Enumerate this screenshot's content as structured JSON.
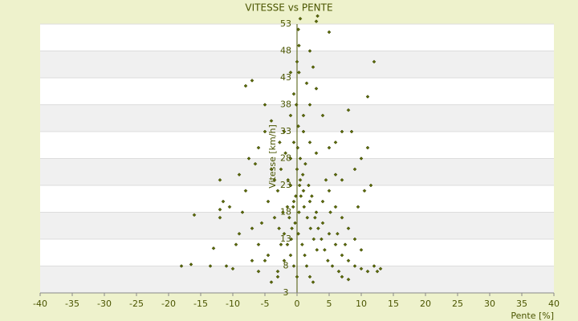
{
  "chart_data": {
    "type": "scatter",
    "title": "VITESSE vs PENTE",
    "xlabel": "Pente [%]",
    "ylabel": "Vitesse [km/h]",
    "color": "#5b6b00",
    "grid": true,
    "xlim": [
      -40,
      40
    ],
    "xticks": [
      -40,
      -35,
      -30,
      -25,
      -20,
      -15,
      -10,
      -5,
      0,
      5,
      10,
      15,
      20,
      25,
      30,
      35,
      40
    ],
    "ylim": [
      3,
      53
    ],
    "yticks": [
      3,
      8,
      13,
      18,
      23,
      28,
      33,
      38,
      43,
      48,
      53
    ],
    "series": [
      {
        "name": "VITESSE vs PENTE",
        "color": "#5b6b00",
        "x": [
          -18,
          -16.5,
          -13.5,
          -11,
          -10,
          -13,
          -12,
          -16,
          -12,
          -11.5,
          -12,
          -9,
          -8,
          -8.5,
          -7,
          -6,
          -5,
          -9,
          -7.5,
          -6,
          -5,
          -6.5,
          -4,
          -5,
          -8,
          -7,
          -4,
          -3,
          -3.5,
          -2.5,
          -2,
          -3,
          -2,
          -1.5,
          -1,
          -1,
          -0.5,
          -2,
          -1,
          -0.5,
          -1,
          0,
          0.3,
          0.2,
          0.5,
          3,
          3.2,
          5,
          12,
          2,
          2.5,
          1.5,
          3,
          2,
          1,
          4,
          1,
          2,
          3,
          5,
          6,
          7,
          8,
          8.5,
          10,
          11,
          11,
          9,
          7,
          6,
          5,
          4,
          6,
          7,
          8,
          9,
          10,
          12,
          13,
          12.5,
          11,
          10,
          9,
          8,
          7,
          6,
          5,
          4,
          3,
          2,
          1,
          0.5,
          0,
          0.5,
          -0.5,
          0.3,
          -0.3,
          0.2,
          0.8,
          1.2,
          1.5,
          2,
          2.5,
          0,
          -0.5,
          -1,
          -1.5,
          -0.8,
          -1.2,
          -0.6,
          -0.2,
          0.4,
          0.9,
          1.3,
          1.8,
          2.3,
          2.8,
          3.3,
          3.8,
          4.3,
          4.8,
          5.5,
          6.5,
          7,
          8,
          -4,
          -3,
          -4.5,
          -5.5,
          -4.5,
          -3.5,
          -2.5,
          -1.8,
          -2.7,
          1.6,
          2.1,
          2.6,
          3.1,
          1.1,
          0.6,
          -0.9,
          -1.4,
          -2.2,
          -2.8,
          4.5,
          5.2,
          6.3,
          7.5,
          9.5,
          10.5,
          11.5,
          -9.5,
          -10.5,
          -7,
          -6,
          0.1,
          0.2,
          -0.1,
          0.3
        ],
        "values": [
          8,
          8.3,
          8,
          8,
          7.5,
          11.3,
          17,
          17.5,
          18.5,
          20,
          24,
          25,
          22,
          18,
          15,
          12,
          9,
          14,
          28,
          30,
          33,
          27,
          35,
          38,
          41.5,
          42.5,
          26,
          22,
          17,
          12,
          9,
          7,
          14,
          19,
          23,
          28,
          31,
          33,
          36,
          40,
          44,
          46,
          49,
          52,
          54,
          53.5,
          54.5,
          51.5,
          46,
          48,
          45,
          42,
          41,
          38,
          36,
          36,
          33,
          31,
          29,
          30,
          31,
          33,
          37,
          33,
          28,
          30,
          39.5,
          26,
          24,
          25,
          22,
          20,
          19,
          17,
          15,
          13,
          11,
          8,
          7.5,
          7,
          7,
          7.5,
          8,
          9,
          10,
          12,
          14,
          16,
          18,
          20,
          22,
          24,
          26,
          28,
          20,
          18,
          16,
          14,
          12,
          10,
          8,
          6,
          5,
          6,
          8,
          10,
          12,
          15,
          17,
          19,
          21,
          23,
          25,
          27,
          23,
          21,
          17,
          15,
          13,
          11,
          9,
          8,
          7,
          6,
          5.5,
          5,
          6,
          10,
          16,
          20,
          24,
          26,
          29,
          31,
          17,
          15,
          13,
          11,
          19,
          21,
          13,
          24,
          18,
          15,
          24,
          18,
          14,
          12,
          19,
          22,
          23,
          12,
          19,
          9,
          7,
          30,
          34,
          38,
          44
        ]
      }
    ]
  }
}
